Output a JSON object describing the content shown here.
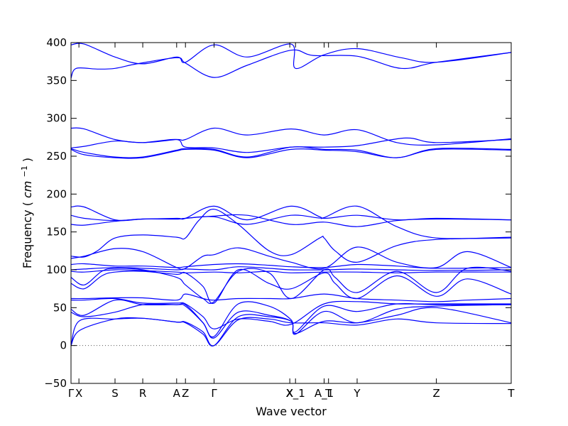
{
  "chart_data": {
    "type": "line",
    "xlabel": "Wave vector",
    "ylabel": "Frequency",
    "ylabel_unit_math": "cm",
    "ylabel_unit_exp": "−1",
    "ylim": [
      -50,
      400
    ],
    "y_ticks": [
      -50,
      0,
      50,
      100,
      150,
      200,
      250,
      300,
      350,
      400
    ],
    "grid": false,
    "zero_line": true,
    "series_color": "#0000ff",
    "x_ticks": [
      {
        "label": "Γ",
        "pos": 0.0
      },
      {
        "label": "X",
        "pos": 0.018
      },
      {
        "label": "S",
        "pos": 0.1
      },
      {
        "label": "R",
        "pos": 0.163
      },
      {
        "label": "A",
        "pos": 0.24
      },
      {
        "label": "Z",
        "pos": 0.26
      },
      {
        "label": "Γ",
        "pos": 0.325
      },
      {
        "label": "X",
        "pos": 0.497
      },
      {
        "label": "X_1",
        "pos": 0.51
      },
      {
        "label": "A_1",
        "pos": 0.575
      },
      {
        "label": "T",
        "pos": 0.585
      },
      {
        "label": "Y",
        "pos": 0.65
      },
      {
        "label": "Z",
        "pos": 0.83
      },
      {
        "label": "T",
        "pos": 1.0
      }
    ],
    "bands": [
      {
        "x": [
          0,
          0.012,
          0.06,
          0.1,
          0.15,
          0.24,
          0.26,
          0.325,
          0.4,
          0.5,
          0.55,
          0.65,
          0.75,
          0.83,
          1.0
        ],
        "y": [
          353,
          366,
          365,
          366,
          372,
          380,
          373,
          354,
          370,
          390,
          383,
          382,
          366,
          374,
          387
        ]
      },
      {
        "x": [
          0,
          0.03,
          0.1,
          0.163,
          0.24,
          0.26,
          0.325,
          0.4,
          0.5,
          0.51,
          0.575,
          0.65,
          0.75,
          0.83,
          1.0
        ],
        "y": [
          397,
          398,
          381,
          372,
          381,
          374,
          397,
          381,
          398,
          366,
          384,
          392,
          380,
          374,
          387
        ]
      },
      {
        "x": [
          0,
          0.03,
          0.1,
          0.163,
          0.24,
          0.26,
          0.325,
          0.4,
          0.5,
          0.575,
          0.65,
          0.74,
          0.83,
          1.0
        ],
        "y": [
          287,
          286,
          272,
          268,
          272,
          272,
          287,
          278,
          286,
          278,
          285,
          268,
          265,
          273
        ]
      },
      {
        "x": [
          0,
          0.03,
          0.1,
          0.163,
          0.24,
          0.26,
          0.325,
          0.4,
          0.5,
          0.575,
          0.65,
          0.76,
          0.83,
          1.0
        ],
        "y": [
          261,
          263,
          270,
          268,
          272,
          262,
          261,
          255,
          262,
          262,
          264,
          274,
          268,
          272
        ]
      },
      {
        "x": [
          0,
          0.03,
          0.1,
          0.163,
          0.24,
          0.26,
          0.325,
          0.4,
          0.5,
          0.575,
          0.65,
          0.74,
          0.83,
          1.0
        ],
        "y": [
          260,
          255,
          249,
          249,
          258,
          260,
          259,
          249,
          262,
          259,
          258,
          248,
          260,
          259
        ]
      },
      {
        "x": [
          0,
          0.03,
          0.1,
          0.163,
          0.24,
          0.26,
          0.325,
          0.4,
          0.5,
          0.575,
          0.65,
          0.74,
          0.83,
          1.0
        ],
        "y": [
          259,
          252,
          248,
          248,
          257,
          259,
          258,
          248,
          259,
          258,
          256,
          248,
          259,
          258
        ]
      },
      {
        "x": [
          0,
          0.03,
          0.1,
          0.163,
          0.24,
          0.26,
          0.325,
          0.4,
          0.5,
          0.565,
          0.575,
          0.65,
          0.74,
          0.83,
          1.0
        ],
        "y": [
          183,
          183,
          166,
          167,
          168,
          168,
          184,
          166,
          184,
          170,
          169,
          184,
          157,
          142,
          143
        ]
      },
      {
        "x": [
          0,
          0.03,
          0.1,
          0.163,
          0.24,
          0.26,
          0.325,
          0.4,
          0.5,
          0.575,
          0.65,
          0.74,
          0.83,
          1.0
        ],
        "y": [
          172,
          168,
          165,
          167,
          167,
          168,
          170,
          160,
          172,
          168,
          172,
          166,
          168,
          166
        ]
      },
      {
        "x": [
          0,
          0.03,
          0.1,
          0.163,
          0.24,
          0.26,
          0.325,
          0.4,
          0.5,
          0.575,
          0.65,
          0.74,
          0.83,
          1.0
        ],
        "y": [
          160,
          159,
          164,
          167,
          167,
          168,
          171,
          172,
          160,
          163,
          157,
          165,
          167,
          166
        ]
      },
      {
        "x": [
          0,
          0.03,
          0.06,
          0.1,
          0.163,
          0.24,
          0.26,
          0.29,
          0.325,
          0.38,
          0.45,
          0.5,
          0.565,
          0.575,
          0.6,
          0.65,
          0.74,
          0.83,
          1.0
        ],
        "y": [
          118,
          117,
          125,
          142,
          146,
          143,
          142,
          165,
          180,
          160,
          125,
          120,
          142,
          142,
          125,
          110,
          132,
          140,
          142
        ]
      },
      {
        "x": [
          0,
          0.03,
          0.1,
          0.163,
          0.24,
          0.26,
          0.3,
          0.325,
          0.38,
          0.45,
          0.5,
          0.575,
          0.65,
          0.74,
          0.83,
          0.9,
          1.0
        ],
        "y": [
          115,
          118,
          128,
          124,
          103,
          102,
          118,
          120,
          129,
          118,
          110,
          102,
          130,
          110,
          103,
          124,
          103
        ]
      },
      {
        "x": [
          0,
          0.03,
          0.1,
          0.163,
          0.24,
          0.26,
          0.325,
          0.38,
          0.45,
          0.5,
          0.575,
          0.65,
          0.74,
          0.83,
          1.0
        ],
        "y": [
          107,
          108,
          105,
          105,
          103,
          104,
          107,
          108,
          106,
          104,
          103,
          107,
          105,
          102,
          103
        ]
      },
      {
        "x": [
          0,
          0.03,
          0.1,
          0.163,
          0.24,
          0.26,
          0.325,
          0.38,
          0.45,
          0.5,
          0.575,
          0.65,
          0.74,
          0.83,
          1.0
        ],
        "y": [
          100,
          101,
          103,
          102,
          100,
          101,
          100,
          104,
          102,
          100,
          100,
          101,
          100,
          99,
          100
        ]
      },
      {
        "x": [
          0,
          0.03,
          0.1,
          0.163,
          0.24,
          0.26,
          0.325,
          0.38,
          0.45,
          0.5,
          0.575,
          0.65,
          0.74,
          0.83,
          1.0
        ],
        "y": [
          98,
          97,
          100,
          99,
          97,
          96,
          97,
          96,
          98,
          96,
          97,
          97,
          96,
          97,
          97
        ]
      },
      {
        "x": [
          0,
          0.03,
          0.07,
          0.1,
          0.163,
          0.24,
          0.26,
          0.3,
          0.325,
          0.38,
          0.45,
          0.5,
          0.575,
          0.6,
          0.65,
          0.74,
          0.83,
          0.9,
          1.0
        ],
        "y": [
          90,
          80,
          98,
          102,
          100,
          90,
          80,
          62,
          58,
          98,
          96,
          62,
          100,
          90,
          70,
          98,
          70,
          102,
          98
        ]
      },
      {
        "x": [
          0,
          0.03,
          0.07,
          0.1,
          0.163,
          0.24,
          0.26,
          0.3,
          0.325,
          0.38,
          0.45,
          0.5,
          0.575,
          0.6,
          0.65,
          0.74,
          0.83,
          0.9,
          1.0
        ],
        "y": [
          82,
          75,
          92,
          97,
          98,
          94,
          96,
          78,
          56,
          100,
          82,
          75,
          96,
          82,
          62,
          92,
          65,
          88,
          68
        ]
      },
      {
        "x": [
          0,
          0.03,
          0.1,
          0.163,
          0.24,
          0.26,
          0.3,
          0.325,
          0.38,
          0.45,
          0.5,
          0.575,
          0.65,
          0.74,
          0.83,
          0.9,
          1.0
        ],
        "y": [
          62,
          62,
          63,
          63,
          60,
          68,
          62,
          60,
          62,
          62,
          62,
          68,
          62,
          60,
          58,
          60,
          62
        ]
      },
      {
        "x": [
          0,
          0.03,
          0.1,
          0.163,
          0.24,
          0.26,
          0.3,
          0.325,
          0.38,
          0.45,
          0.5,
          0.575,
          0.65,
          0.74,
          0.83,
          1.0
        ],
        "y": [
          60,
          60,
          62,
          56,
          56,
          55,
          38,
          22,
          35,
          32,
          28,
          55,
          58,
          55,
          55,
          55
        ]
      },
      {
        "x": [
          0,
          0.03,
          0.1,
          0.163,
          0.24,
          0.26,
          0.3,
          0.325,
          0.38,
          0.45,
          0.5,
          0.51,
          0.575,
          0.65,
          0.74,
          0.83,
          1.0
        ],
        "y": [
          48,
          40,
          60,
          54,
          54,
          52,
          30,
          12,
          55,
          52,
          34,
          18,
          52,
          45,
          55,
          54,
          54
        ]
      },
      {
        "x": [
          0,
          0.03,
          0.1,
          0.163,
          0.24,
          0.26,
          0.3,
          0.325,
          0.38,
          0.45,
          0.5,
          0.51,
          0.575,
          0.65,
          0.74,
          0.83,
          1.0
        ],
        "y": [
          44,
          38,
          44,
          54,
          54,
          54,
          30,
          10,
          44,
          40,
          32,
          15,
          45,
          30,
          48,
          52,
          54
        ]
      },
      {
        "x": [
          0,
          0.02,
          0.1,
          0.163,
          0.24,
          0.26,
          0.3,
          0.325,
          0.38,
          0.45,
          0.5,
          0.51,
          0.575,
          0.65,
          0.74,
          0.83,
          1.0
        ],
        "y": [
          0,
          20,
          35,
          36,
          31,
          30,
          15,
          0,
          38,
          38,
          32,
          16,
          32,
          30,
          40,
          50,
          30
        ]
      },
      {
        "x": [
          0,
          0.02,
          0.1,
          0.163,
          0.24,
          0.26,
          0.3,
          0.325,
          0.38,
          0.45,
          0.5,
          0.575,
          0.65,
          0.74,
          0.83,
          1.0
        ],
        "y": [
          0,
          33,
          35,
          36,
          31,
          31,
          18,
          0,
          34,
          35,
          30,
          30,
          27,
          35,
          30,
          29
        ]
      }
    ]
  }
}
